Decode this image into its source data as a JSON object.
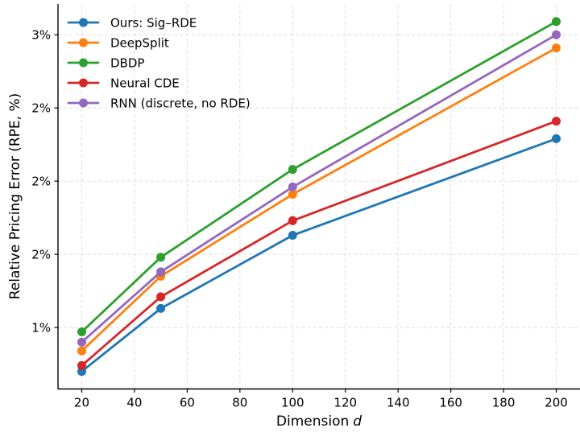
{
  "chart_data": {
    "type": "line",
    "title": "",
    "xlabel": "Dimension d",
    "xlabel_prefix": "Dimension",
    "xlabel_var": "d",
    "ylabel": "Relative Pricing Error (RPE, %)",
    "x": [
      20,
      50,
      100,
      200
    ],
    "series": [
      {
        "name": "Ours: Sig–RDE",
        "color": "#1f77b4",
        "values": [
          0.7,
          1.13,
          1.63,
          2.29
        ]
      },
      {
        "name": "DeepSplit",
        "color": "#ff7f0e",
        "values": [
          0.84,
          1.35,
          1.91,
          2.91
        ]
      },
      {
        "name": "DBDP",
        "color": "#2ca02c",
        "values": [
          0.97,
          1.48,
          2.08,
          3.09
        ]
      },
      {
        "name": "Neural CDE",
        "color": "#d62728",
        "values": [
          0.74,
          1.21,
          1.73,
          2.41
        ]
      },
      {
        "name": "RNN (discrete, no RDE)",
        "color": "#9467bd",
        "values": [
          0.9,
          1.38,
          1.96,
          3.0
        ]
      }
    ],
    "xlim": [
      11,
      209
    ],
    "ylim": [
      0.58,
      3.21
    ],
    "xticks": [
      {
        "value": 20,
        "label": "20"
      },
      {
        "value": 40,
        "label": "40"
      },
      {
        "value": 60,
        "label": "60"
      },
      {
        "value": 80,
        "label": "80"
      },
      {
        "value": 100,
        "label": "100"
      },
      {
        "value": 120,
        "label": "120"
      },
      {
        "value": 140,
        "label": "140"
      },
      {
        "value": 160,
        "label": "160"
      },
      {
        "value": 180,
        "label": "180"
      },
      {
        "value": 200,
        "label": "200"
      }
    ],
    "yticks": [
      {
        "value": 1.0,
        "label": "1%"
      },
      {
        "value": 1.5,
        "label": "2%"
      },
      {
        "value": 2.0,
        "label": "2%"
      },
      {
        "value": 2.5,
        "label": "2%"
      },
      {
        "value": 3.0,
        "label": "3%"
      }
    ],
    "grid": true,
    "legend_position": "upper left",
    "colors": {
      "grid": "#dcdcdc",
      "axis": "#000000",
      "background": "#ffffff"
    }
  }
}
